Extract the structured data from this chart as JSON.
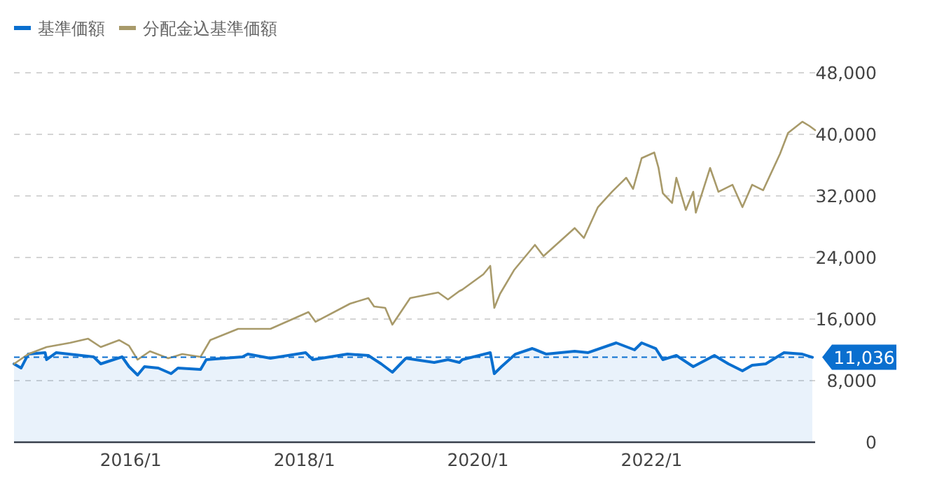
{
  "chart_data": {
    "type": "line",
    "legend": "top left",
    "grid": "y",
    "marker": "none",
    "line_style": "solid",
    "xlim": [
      "2014-08-28",
      "2023-11-20"
    ],
    "xticks": [
      {
        "value": "2016-01-01",
        "label": "2016/1"
      },
      {
        "value": "2018-01-01",
        "label": "2018/1"
      },
      {
        "value": "2020-01-01",
        "label": "2020/1"
      },
      {
        "value": "2022-01-01",
        "label": "2022/1"
      }
    ],
    "ylim": [
      0,
      48000
    ],
    "yticks": [
      0,
      {
        "value": 8000,
        "label": "8,000"
      },
      {
        "value": 16000,
        "label": "16,000"
      },
      {
        "value": 24000,
        "label": "24,000"
      },
      {
        "value": 32000,
        "label": "32,000"
      },
      {
        "value": 40000,
        "label": "40,000"
      },
      {
        "value": 48000,
        "label": "48,000"
      }
    ],
    "ref_lines": [
      {
        "axis": "y",
        "value": 11036,
        "label": "11,036",
        "color": "#0a6fcf",
        "line_style": "dashed"
      }
    ],
    "series": [
      {
        "name": "基準価額",
        "type": "area",
        "color": "#0a6fcf",
        "x": [
          "2014-08-28",
          "2014-09-27",
          "2014-10-27",
          "2015-01-06",
          "2015-01-12",
          "2015-02-22",
          "2015-07-29",
          "2015-08-28",
          "2015-11-26",
          "2015-12-25",
          "2016-01-30",
          "2016-02-28",
          "2016-04-26",
          "2016-06-19",
          "2016-07-18",
          "2016-10-21",
          "2016-11-14",
          "2017-04-15",
          "2017-05-08",
          "2017-08-11",
          "2018-01-06",
          "2018-02-05",
          "2018-07-01",
          "2018-09-27",
          "2018-11-20",
          "2019-01-06",
          "2019-03-04",
          "2019-07-01",
          "2019-08-28",
          "2019-10-15",
          "2019-10-27",
          "2020-02-22",
          "2020-03-10",
          "2020-04-09",
          "2020-06-07",
          "2020-08-17",
          "2020-10-15",
          "2021-02-11",
          "2021-04-09",
          "2021-08-05",
          "2021-10-21",
          "2021-11-20",
          "2022-01-18",
          "2022-02-17",
          "2022-04-15",
          "2022-06-25",
          "2022-09-22",
          "2022-11-20",
          "2023-01-18",
          "2023-02-28",
          "2023-04-26",
          "2023-07-12",
          "2023-09-27",
          "2023-11-08"
        ],
        "values": [
          10180,
          9640,
          11450,
          11640,
          10730,
          11640,
          11090,
          10180,
          11090,
          9820,
          8730,
          9820,
          9640,
          8910,
          9640,
          9450,
          10730,
          11090,
          11450,
          10910,
          11640,
          10730,
          11450,
          11270,
          10180,
          9090,
          10910,
          10360,
          10730,
          10360,
          10730,
          11640,
          8910,
          9820,
          11450,
          12180,
          11450,
          11820,
          11640,
          12910,
          12000,
          12910,
          12180,
          10730,
          11270,
          9820,
          11270,
          10180,
          9270,
          10000,
          10180,
          11640,
          11450,
          11036
        ]
      },
      {
        "name": "分配金込基準価額",
        "type": "line",
        "color": "#a89a6a",
        "x": [
          "2014-08-28",
          "2014-10-27",
          "2015-01-12",
          "2015-04-20",
          "2015-07-06",
          "2015-08-28",
          "2015-11-14",
          "2015-12-25",
          "2016-01-30",
          "2016-03-22",
          "2016-06-07",
          "2016-08-05",
          "2016-10-21",
          "2016-12-01",
          "2017-03-28",
          "2017-08-11",
          "2018-01-18",
          "2018-02-17",
          "2018-07-12",
          "2018-09-27",
          "2018-10-21",
          "2018-12-07",
          "2019-01-06",
          "2019-03-22",
          "2019-07-18",
          "2019-08-28",
          "2019-10-15",
          "2019-10-27",
          "2020-01-24",
          "2020-02-22",
          "2020-03-10",
          "2020-04-03",
          "2020-06-01",
          "2020-08-28",
          "2020-10-03",
          "2021-02-11",
          "2021-03-22",
          "2021-05-20",
          "2021-07-18",
          "2021-09-16",
          "2021-10-15",
          "2021-11-20",
          "2022-01-12",
          "2022-01-30",
          "2022-02-17",
          "2022-03-28",
          "2022-04-15",
          "2022-05-25",
          "2022-06-25",
          "2022-07-06",
          "2022-09-04",
          "2022-10-09",
          "2022-12-07",
          "2023-01-18",
          "2023-02-28",
          "2023-04-15",
          "2023-06-25",
          "2023-07-29",
          "2023-09-27",
          "2023-10-27",
          "2023-11-20"
        ],
        "values": [
          10180,
          11450,
          12360,
          12910,
          13450,
          12360,
          13270,
          12540,
          10730,
          11820,
          10910,
          11450,
          11090,
          13270,
          14730,
          14730,
          16910,
          15640,
          18000,
          18730,
          17640,
          17450,
          15270,
          18730,
          19450,
          18550,
          19640,
          19820,
          21820,
          22910,
          17450,
          19270,
          22360,
          25640,
          24180,
          27820,
          26540,
          30540,
          32540,
          34360,
          32910,
          36910,
          37640,
          35640,
          32360,
          31090,
          34360,
          30180,
          32540,
          29820,
          35640,
          32540,
          33450,
          30540,
          33450,
          32730,
          37450,
          40180,
          41640,
          41090,
          40540
        ]
      }
    ]
  }
}
